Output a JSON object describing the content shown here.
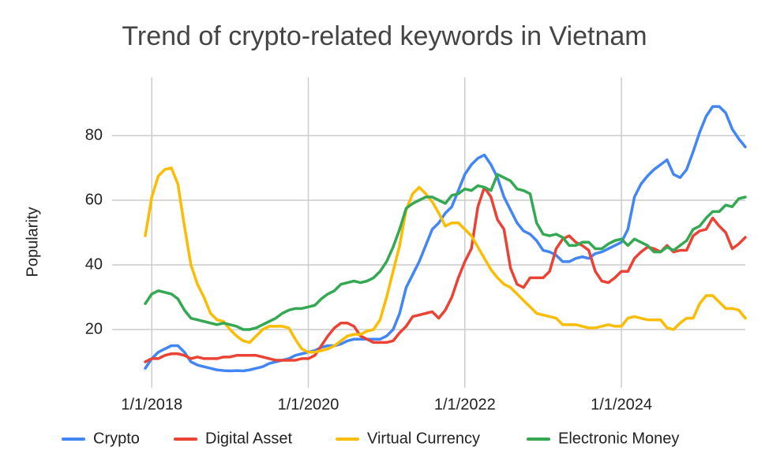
{
  "chart_data": {
    "type": "line",
    "title": "Trend of crypto-related keywords in Vietnam",
    "y_label": "Popularity",
    "x": [
      "12/1/2017",
      "1/1/2018",
      "2/1/2018",
      "3/1/2018",
      "4/1/2018",
      "5/1/2018",
      "6/1/2018",
      "7/1/2018",
      "8/1/2018",
      "9/1/2018",
      "10/1/2018",
      "11/1/2018",
      "12/1/2018",
      "1/1/2019",
      "2/1/2019",
      "3/1/2019",
      "4/1/2019",
      "5/1/2019",
      "6/1/2019",
      "7/1/2019",
      "8/1/2019",
      "9/1/2019",
      "10/1/2019",
      "11/1/2019",
      "12/1/2019",
      "1/1/2020",
      "2/1/2020",
      "3/1/2020",
      "4/1/2020",
      "5/1/2020",
      "6/1/2020",
      "7/1/2020",
      "8/1/2020",
      "9/1/2020",
      "10/1/2020",
      "11/1/2020",
      "12/1/2020",
      "1/1/2021",
      "2/1/2021",
      "3/1/2021",
      "4/1/2021",
      "5/1/2021",
      "6/1/2021",
      "7/1/2021",
      "8/1/2021",
      "9/1/2021",
      "10/1/2021",
      "11/1/2021",
      "12/1/2021",
      "1/1/2022",
      "2/1/2022",
      "3/1/2022",
      "4/1/2022",
      "5/1/2022",
      "6/1/2022",
      "7/1/2022",
      "8/1/2022",
      "9/1/2022",
      "10/1/2022",
      "11/1/2022",
      "12/1/2022",
      "1/1/2023",
      "2/1/2023",
      "3/1/2023",
      "4/1/2023",
      "5/1/2023",
      "6/1/2023",
      "7/1/2023",
      "8/1/2023",
      "9/1/2023",
      "10/1/2023",
      "11/1/2023",
      "12/1/2023",
      "1/1/2024",
      "2/1/2024",
      "3/1/2024",
      "4/1/2024",
      "5/1/2024",
      "6/1/2024",
      "7/1/2024",
      "8/1/2024",
      "9/1/2024",
      "10/1/2024",
      "11/1/2024",
      "12/1/2024",
      "1/1/2025",
      "2/1/2025",
      "3/1/2025",
      "4/1/2025",
      "5/1/2025",
      "6/1/2025",
      "7/1/2025",
      "8/1/2025"
    ],
    "xlim": [
      "12/1/2017",
      "8/1/2025"
    ],
    "xticks": [
      "1/1/2018",
      "1/1/2020",
      "1/1/2022",
      "1/1/2024"
    ],
    "ylim": [
      2,
      98
    ],
    "yticks": [
      20,
      40,
      60,
      80
    ],
    "grid": true,
    "legend": "bottom",
    "series": [
      {
        "name": "Crypto",
        "color": "#4285f4",
        "values": [
          8,
          11,
          13,
          14,
          15,
          15,
          13,
          10,
          9,
          8.5,
          8,
          7.5,
          7.3,
          7.2,
          7.3,
          7.2,
          7.5,
          8,
          8.5,
          9.5,
          10,
          10.5,
          11,
          12,
          12.5,
          13,
          13.5,
          14.5,
          15,
          15,
          15.5,
          16.5,
          17,
          17,
          17,
          17,
          17,
          18,
          20,
          25,
          33,
          37,
          41,
          46,
          51,
          53,
          56,
          58,
          63,
          68,
          71,
          73,
          74,
          71,
          67,
          61,
          57,
          53,
          50.5,
          49.5,
          47.5,
          44.5,
          44,
          43,
          41,
          41,
          42,
          42.5,
          42,
          43.5,
          44,
          45,
          46,
          47,
          51,
          61,
          65,
          67.5,
          69.5,
          71,
          72.5,
          68,
          67,
          69.5,
          75,
          81,
          86,
          89,
          89,
          87,
          82,
          79,
          76.5
        ]
      },
      {
        "name": "Digital Asset",
        "color": "#ea4335",
        "values": [
          10,
          11,
          11,
          12,
          12.5,
          12.5,
          12,
          11,
          11.5,
          11,
          11,
          11,
          11.5,
          11.5,
          12,
          12,
          12,
          12,
          11.5,
          11,
          10.5,
          10.5,
          10.5,
          10.5,
          11,
          11,
          12,
          15,
          18,
          20.5,
          22,
          22,
          21,
          18,
          17,
          16,
          16,
          16,
          16.5,
          19,
          21,
          24,
          24.5,
          25,
          25.5,
          23.5,
          26,
          30,
          36,
          41,
          45,
          58,
          64,
          61,
          54,
          51,
          39,
          34,
          33,
          36,
          36,
          36,
          38,
          45,
          48,
          49,
          47,
          46,
          44.5,
          38,
          35,
          34.5,
          36,
          38,
          38,
          42,
          44,
          45.5,
          45,
          44,
          46,
          44,
          44.5,
          44.5,
          49,
          50.5,
          51,
          54.5,
          52,
          50,
          45,
          46.5,
          48.5
        ]
      },
      {
        "name": "Virtual Currency",
        "color": "#fbbc04",
        "values": [
          49,
          61,
          67.5,
          69.5,
          70,
          65,
          52,
          40,
          34,
          30,
          25,
          23,
          22.5,
          20,
          18,
          16.5,
          16,
          18,
          20,
          21,
          21,
          21,
          20.5,
          17,
          14,
          13,
          13,
          13.5,
          14,
          15,
          16.5,
          18,
          18.5,
          18.5,
          19.5,
          20,
          23,
          30,
          38,
          46,
          57,
          62,
          64,
          62,
          59.5,
          56,
          52,
          53,
          53,
          51,
          49,
          45.5,
          42,
          38.5,
          36,
          34,
          33,
          31,
          29,
          27,
          25,
          24.5,
          24,
          23.5,
          21.5,
          21.5,
          21.5,
          21,
          20.5,
          20.5,
          21,
          21.5,
          21,
          21,
          23.5,
          24,
          23.5,
          23,
          23,
          23,
          20.5,
          20,
          22,
          23.5,
          23.5,
          28,
          30.5,
          30.5,
          28.5,
          26.5,
          26.5,
          26,
          23.5
        ]
      },
      {
        "name": "Electronic Money",
        "color": "#34a853",
        "values": [
          28,
          31,
          32,
          31.5,
          31,
          29.5,
          26,
          23.5,
          23,
          22.5,
          22,
          21.5,
          22,
          21.5,
          21,
          20,
          20,
          20.5,
          21.5,
          22.5,
          23.5,
          25,
          26,
          26.5,
          26.5,
          27,
          27.5,
          29.5,
          31,
          32,
          34,
          34.5,
          35,
          34.5,
          35,
          36,
          38,
          41,
          45.5,
          51,
          57.5,
          59,
          60,
          61,
          61,
          60,
          59,
          61.5,
          62,
          63.5,
          63,
          64.5,
          64,
          63,
          68,
          67,
          66,
          63.5,
          63,
          62,
          53,
          49.5,
          49,
          49.5,
          48.5,
          46,
          46,
          47,
          47,
          45,
          45,
          46.5,
          47.5,
          48,
          46,
          48,
          47,
          46,
          44,
          44,
          45.5,
          44.5,
          46,
          47.5,
          51,
          52,
          54.5,
          56.5,
          56.5,
          58.5,
          58,
          60.5,
          61
        ]
      }
    ]
  }
}
